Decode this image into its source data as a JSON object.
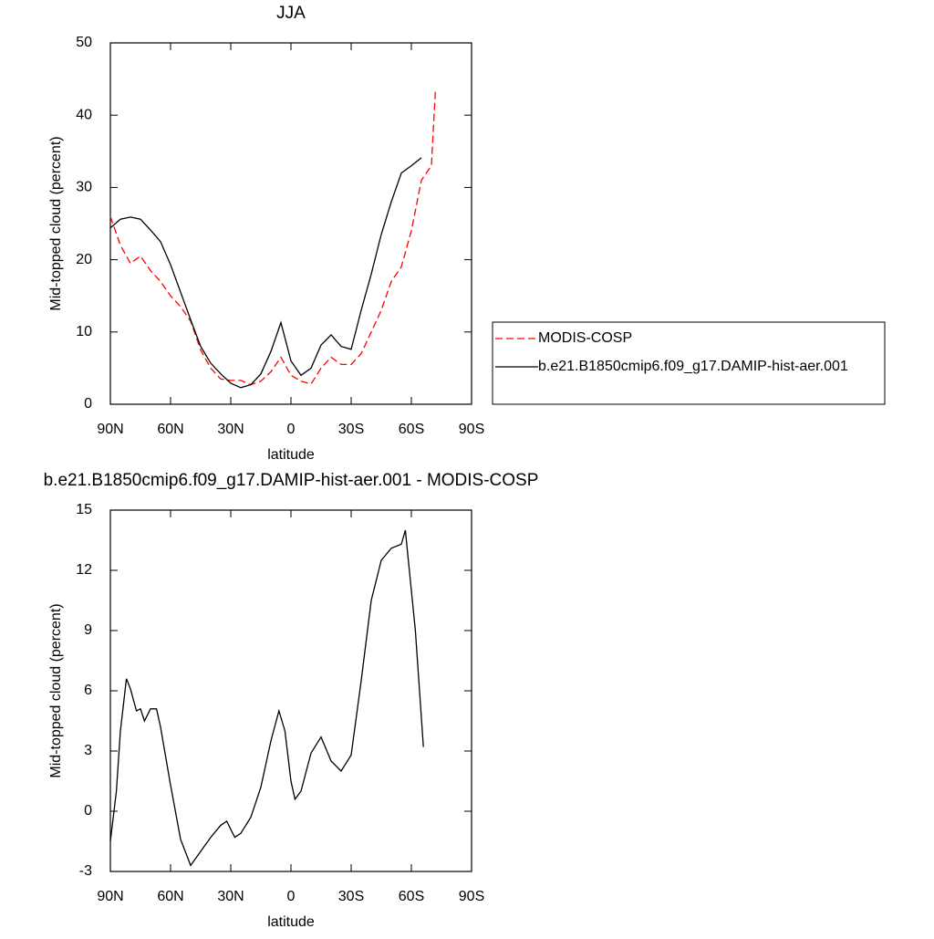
{
  "chart_data": [
    {
      "type": "line",
      "title": "JJA",
      "xlabel": "latitude",
      "ylabel": "Mid-topped cloud (percent)",
      "xlim": [
        90,
        -90
      ],
      "xticks": [
        {
          "value": 90,
          "label": "90N"
        },
        {
          "value": 60,
          "label": "60N"
        },
        {
          "value": 30,
          "label": "30N"
        },
        0,
        {
          "value": -30,
          "label": "30S"
        },
        {
          "value": -60,
          "label": "60S"
        },
        {
          "value": -90,
          "label": "90S"
        }
      ],
      "ylim": [
        0,
        50
      ],
      "yticks": [
        0,
        10,
        20,
        30,
        40,
        50
      ],
      "legend": "right",
      "x": [
        90,
        85,
        80,
        75,
        70,
        65,
        60,
        55,
        50,
        45,
        40,
        35,
        30,
        25,
        20,
        15,
        10,
        5,
        0,
        -5,
        -10,
        -15,
        -20,
        -25,
        -30,
        -35,
        -40,
        -45,
        -50,
        -55,
        -60,
        -65,
        -70,
        -72
      ],
      "series": [
        {
          "name": "MODIS-COSP",
          "color": "#ff0000",
          "line_style": "dashed",
          "values": [
            26,
            22,
            19.5,
            20.5,
            18.5,
            17,
            15,
            13.5,
            11.5,
            7.5,
            5,
            3.5,
            3.3,
            3.3,
            2.7,
            3.2,
            4.5,
            6.5,
            4,
            3.2,
            2.8,
            5,
            6.5,
            5.5,
            5.5,
            7,
            10,
            13,
            17,
            19,
            24,
            31,
            33,
            43.5
          ]
        },
        {
          "name": "b.e21.B1850cmip6.f09_g17.DAMIP-hist-aer.001",
          "color": "#000000",
          "line_style": "solid",
          "values": [
            24.4,
            25.6,
            25.9,
            25.6,
            24.1,
            22.5,
            19.3,
            15.5,
            11.7,
            8.0,
            5.7,
            4.2,
            2.9,
            2.3,
            2.7,
            4.2,
            7.3,
            11.3,
            6.0,
            4.0,
            5.0,
            8.2,
            9.6,
            8.0,
            7.6,
            13,
            18,
            23.5,
            28,
            32,
            33,
            34.1,
            null,
            null
          ]
        }
      ]
    },
    {
      "type": "line",
      "title": "b.e21.B1850cmip6.f09_g17.DAMIP-hist-aer.001 - MODIS-COSP",
      "xlabel": "latitude",
      "ylabel": "Mid-topped cloud (percent)",
      "xlim": [
        90,
        -90
      ],
      "xticks": [
        {
          "value": 90,
          "label": "90N"
        },
        {
          "value": 60,
          "label": "60N"
        },
        {
          "value": 30,
          "label": "30N"
        },
        0,
        {
          "value": -30,
          "label": "30S"
        },
        {
          "value": -60,
          "label": "60S"
        },
        {
          "value": -90,
          "label": "90S"
        }
      ],
      "ylim": [
        -3,
        15
      ],
      "yticks": [
        -3,
        0,
        3,
        6,
        9,
        12,
        15
      ],
      "color": "#000000",
      "x": [
        90,
        87,
        85,
        82,
        80,
        77,
        75,
        73,
        70,
        67,
        65,
        60,
        55,
        50,
        45,
        40,
        35,
        32,
        28,
        25,
        20,
        15,
        10,
        6,
        3,
        0,
        -2,
        -5,
        -10,
        -15,
        -20,
        -25,
        -30,
        -35,
        -40,
        -45,
        -50,
        -55,
        -57,
        -60,
        -62,
        -66
      ],
      "values": [
        -1.5,
        1,
        4,
        6.6,
        6.1,
        5,
        5.1,
        4.5,
        5.1,
        5.1,
        4.2,
        1.3,
        -1.4,
        -2.7,
        -2,
        -1.3,
        -0.7,
        -0.5,
        -1.3,
        -1.1,
        -0.3,
        1.2,
        3.5,
        5.0,
        4.0,
        1.5,
        0.6,
        1.0,
        2.9,
        3.7,
        2.5,
        2.0,
        2.8,
        6.5,
        10.5,
        12.5,
        13.1,
        13.3,
        14,
        11,
        9,
        3.2
      ]
    }
  ]
}
